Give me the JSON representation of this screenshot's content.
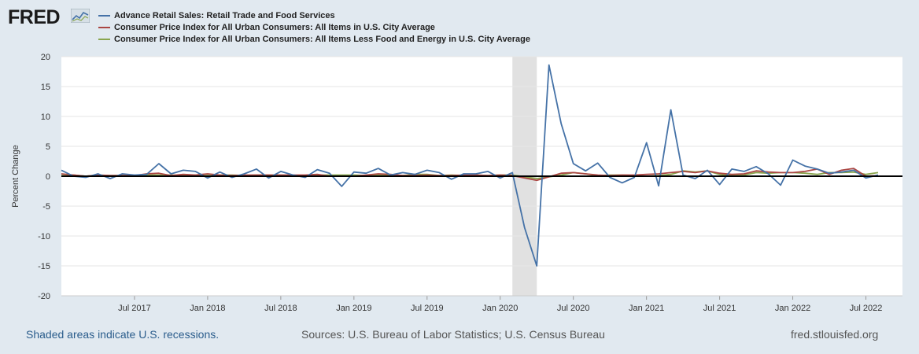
{
  "logo": {
    "text": "FRED"
  },
  "chart_data": {
    "type": "line",
    "ylabel": "Percent Change",
    "ylim": [
      -20,
      20
    ],
    "yticks": [
      -20,
      -15,
      -10,
      -5,
      0,
      5,
      10,
      15,
      20
    ],
    "x_start": "2017-01",
    "x_end": "2022-09",
    "xtick_labels": [
      "Jul 2017",
      "Jan 2018",
      "Jul 2018",
      "Jan 2019",
      "Jul 2019",
      "Jan 2020",
      "Jul 2020",
      "Jan 2021",
      "Jul 2021",
      "Jan 2022",
      "Jul 2022"
    ],
    "xtick_months": [
      6,
      12,
      18,
      24,
      30,
      36,
      42,
      48,
      54,
      60,
      66
    ],
    "recession": {
      "start_month": 37,
      "end_month": 39
    },
    "zero_line": 0,
    "series": [
      {
        "name": "Advance Retail Sales: Retail Trade and Food Services",
        "color": "#4572a7",
        "start_month": 0,
        "values": [
          1.0,
          0.0,
          -0.2,
          0.4,
          -0.4,
          0.4,
          0.2,
          0.3,
          2.1,
          0.4,
          1.0,
          0.8,
          -0.3,
          0.7,
          -0.2,
          0.4,
          1.2,
          -0.3,
          0.8,
          0.2,
          -0.2,
          1.1,
          0.5,
          -1.7,
          0.7,
          0.5,
          1.3,
          0.2,
          0.6,
          0.3,
          1.0,
          0.6,
          -0.5,
          0.4,
          0.4,
          0.8,
          -0.3,
          0.6,
          -8.6,
          -15.0,
          18.6,
          8.8,
          2.1,
          0.9,
          2.2,
          -0.2,
          -1.1,
          -0.2,
          5.6,
          -1.6,
          11.1,
          0.2,
          -0.4,
          1.0,
          -1.4,
          1.2,
          0.8,
          1.6,
          0.4,
          -1.5,
          2.7,
          1.7,
          1.2,
          0.5,
          0.7,
          1.0,
          -0.3,
          0.2
        ]
      },
      {
        "name": "Consumer Price Index for All Urban Consumers: All Items in U.S. City Average",
        "color": "#aa4643",
        "start_month": 0,
        "values": [
          0.4,
          0.2,
          0.0,
          0.2,
          0.1,
          0.1,
          0.1,
          0.4,
          0.5,
          0.1,
          0.3,
          0.2,
          0.4,
          0.2,
          0.1,
          0.2,
          0.2,
          0.2,
          0.2,
          0.2,
          0.2,
          0.3,
          0.0,
          0.0,
          0.0,
          0.2,
          0.4,
          0.3,
          0.1,
          0.1,
          0.2,
          0.1,
          0.1,
          0.2,
          0.2,
          0.1,
          0.2,
          0.1,
          -0.3,
          -0.7,
          -0.1,
          0.5,
          0.6,
          0.4,
          0.2,
          0.1,
          0.2,
          0.2,
          0.3,
          0.4,
          0.6,
          0.8,
          0.6,
          0.9,
          0.5,
          0.3,
          0.4,
          0.9,
          0.7,
          0.6,
          0.6,
          0.8,
          1.2,
          0.3,
          1.0,
          1.3,
          0.0,
          0.1
        ]
      },
      {
        "name": "Consumer Price Index for All Urban Consumers: All Items Less Food and Energy in U.S. City Average",
        "color": "#89a54e",
        "start_month": 0,
        "values": [
          0.3,
          0.2,
          0.0,
          0.2,
          0.1,
          0.1,
          0.1,
          0.2,
          0.2,
          0.2,
          0.1,
          0.2,
          0.3,
          0.2,
          0.2,
          0.1,
          0.2,
          0.2,
          0.2,
          0.1,
          0.1,
          0.2,
          0.2,
          0.2,
          0.2,
          0.1,
          0.2,
          0.2,
          0.1,
          0.3,
          0.3,
          0.1,
          0.2,
          0.1,
          0.2,
          0.1,
          0.2,
          0.2,
          -0.1,
          -0.4,
          -0.1,
          0.2,
          0.6,
          0.4,
          0.1,
          0.2,
          0.2,
          0.1,
          0.0,
          0.1,
          0.3,
          0.9,
          0.7,
          0.9,
          0.3,
          0.1,
          0.2,
          0.6,
          0.5,
          0.6,
          0.6,
          0.5,
          0.3,
          0.6,
          0.6,
          0.7,
          0.3,
          0.6
        ]
      }
    ]
  },
  "footer": {
    "recession_note": "Shaded areas indicate U.S. recessions.",
    "sources": "Sources: U.S. Bureau of Labor Statistics; U.S. Census Bureau",
    "site": "fred.stlouisfed.org"
  },
  "colors": {
    "background": "#e1e9f0",
    "plot_bg": "#ffffff",
    "recession": "#e1e1e1",
    "grid": "#e6e6e6",
    "zero_line": "#000000"
  }
}
